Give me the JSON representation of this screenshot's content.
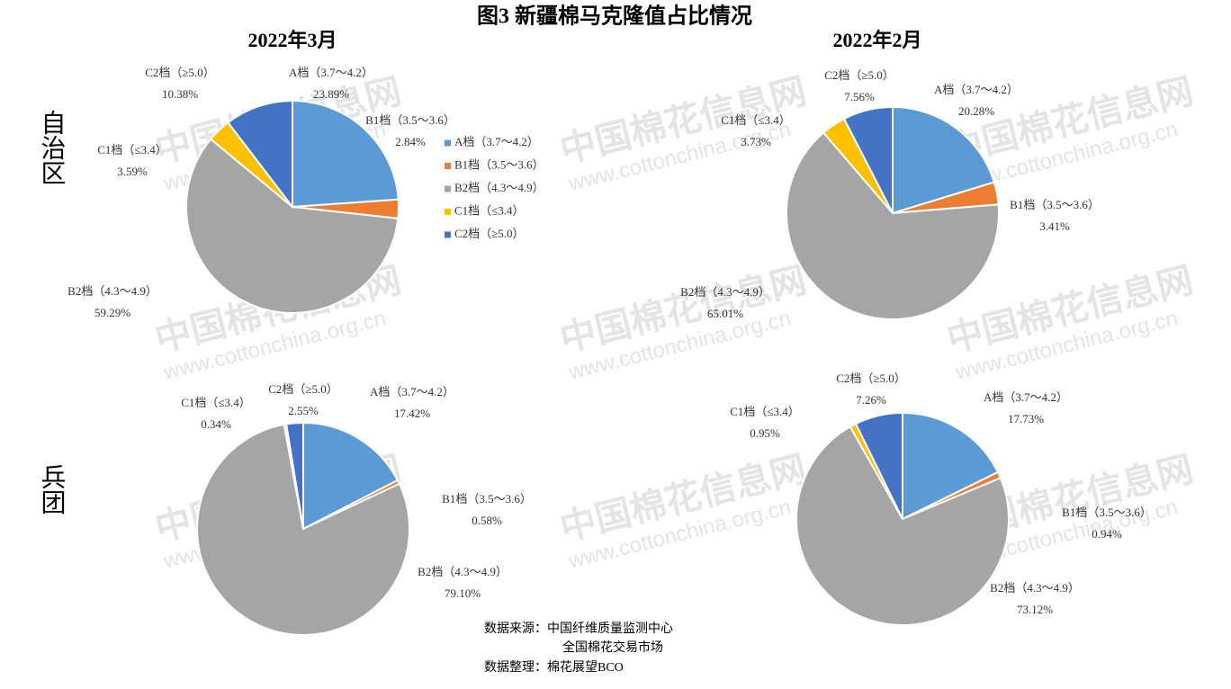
{
  "title": "图3 新疆棉马克隆值占比情况",
  "columns": [
    "2022年3月",
    "2022年2月"
  ],
  "rows": [
    "自治区",
    "兵团"
  ],
  "watermark": [
    "中国棉花信息网",
    "www.cottonchina.org.cn"
  ],
  "source": [
    "数据来源：中国纤维质量监测中心",
    "全国棉花交易市场",
    "数据整理：棉花展望BCO"
  ],
  "chart_data": [
    {
      "type": "pie",
      "categories": [
        "A档（3.7～4.2）",
        "B1档（3.5～3.6）",
        "B2档（4.3～4.9）",
        "C1档（≤3.4）",
        "C2档（≥5.0）"
      ],
      "colors": [
        "#5b9bd5",
        "#ed7d31",
        "#a5a5a5",
        "#ffc000",
        "#4472c4"
      ],
      "values": [
        23.89,
        2.84,
        59.29,
        3.59,
        10.38
      ],
      "value_labels": [
        "23.89%",
        "2.84%",
        "59.29%",
        "3.59%",
        "10.38%"
      ],
      "legend": "right"
    },
    {
      "type": "pie",
      "categories": [
        "A档（3.7～4.2）",
        "B1档（3.5～3.6）",
        "B2档（4.3～4.9）",
        "C1档（≤3.4）",
        "C2档（≥5.0）"
      ],
      "colors": [
        "#5b9bd5",
        "#ed7d31",
        "#a5a5a5",
        "#ffc000",
        "#4472c4"
      ],
      "values": [
        20.28,
        3.41,
        65.01,
        3.73,
        7.56
      ],
      "value_labels": [
        "20.28%",
        "3.41%",
        "65.01%",
        "3.73%",
        "7.56%"
      ]
    },
    {
      "type": "pie",
      "categories": [
        "A档（3.7～4.2）",
        "B1档（3.5～3.6）",
        "B2档（4.3～4.9）",
        "C1档（≤3.4）",
        "C2档（≥5.0）"
      ],
      "colors": [
        "#5b9bd5",
        "#ed7d31",
        "#a5a5a5",
        "#ffc000",
        "#4472c4"
      ],
      "values": [
        17.42,
        0.58,
        79.1,
        0.34,
        2.55
      ],
      "value_labels": [
        "17.42%",
        "0.58%",
        "79.10%",
        "0.34%",
        "2.55%"
      ]
    },
    {
      "type": "pie",
      "categories": [
        "A档（3.7～4.2）",
        "B1档（3.5～3.6）",
        "B2档（4.3～4.9）",
        "C1档（≤3.4）",
        "C2档（≥5.0）"
      ],
      "colors": [
        "#5b9bd5",
        "#ed7d31",
        "#a5a5a5",
        "#ffc000",
        "#4472c4"
      ],
      "values": [
        17.73,
        0.94,
        73.12,
        0.95,
        7.26
      ],
      "value_labels": [
        "17.73%",
        "0.94%",
        "73.12%",
        "0.95%",
        "7.26%"
      ]
    }
  ]
}
